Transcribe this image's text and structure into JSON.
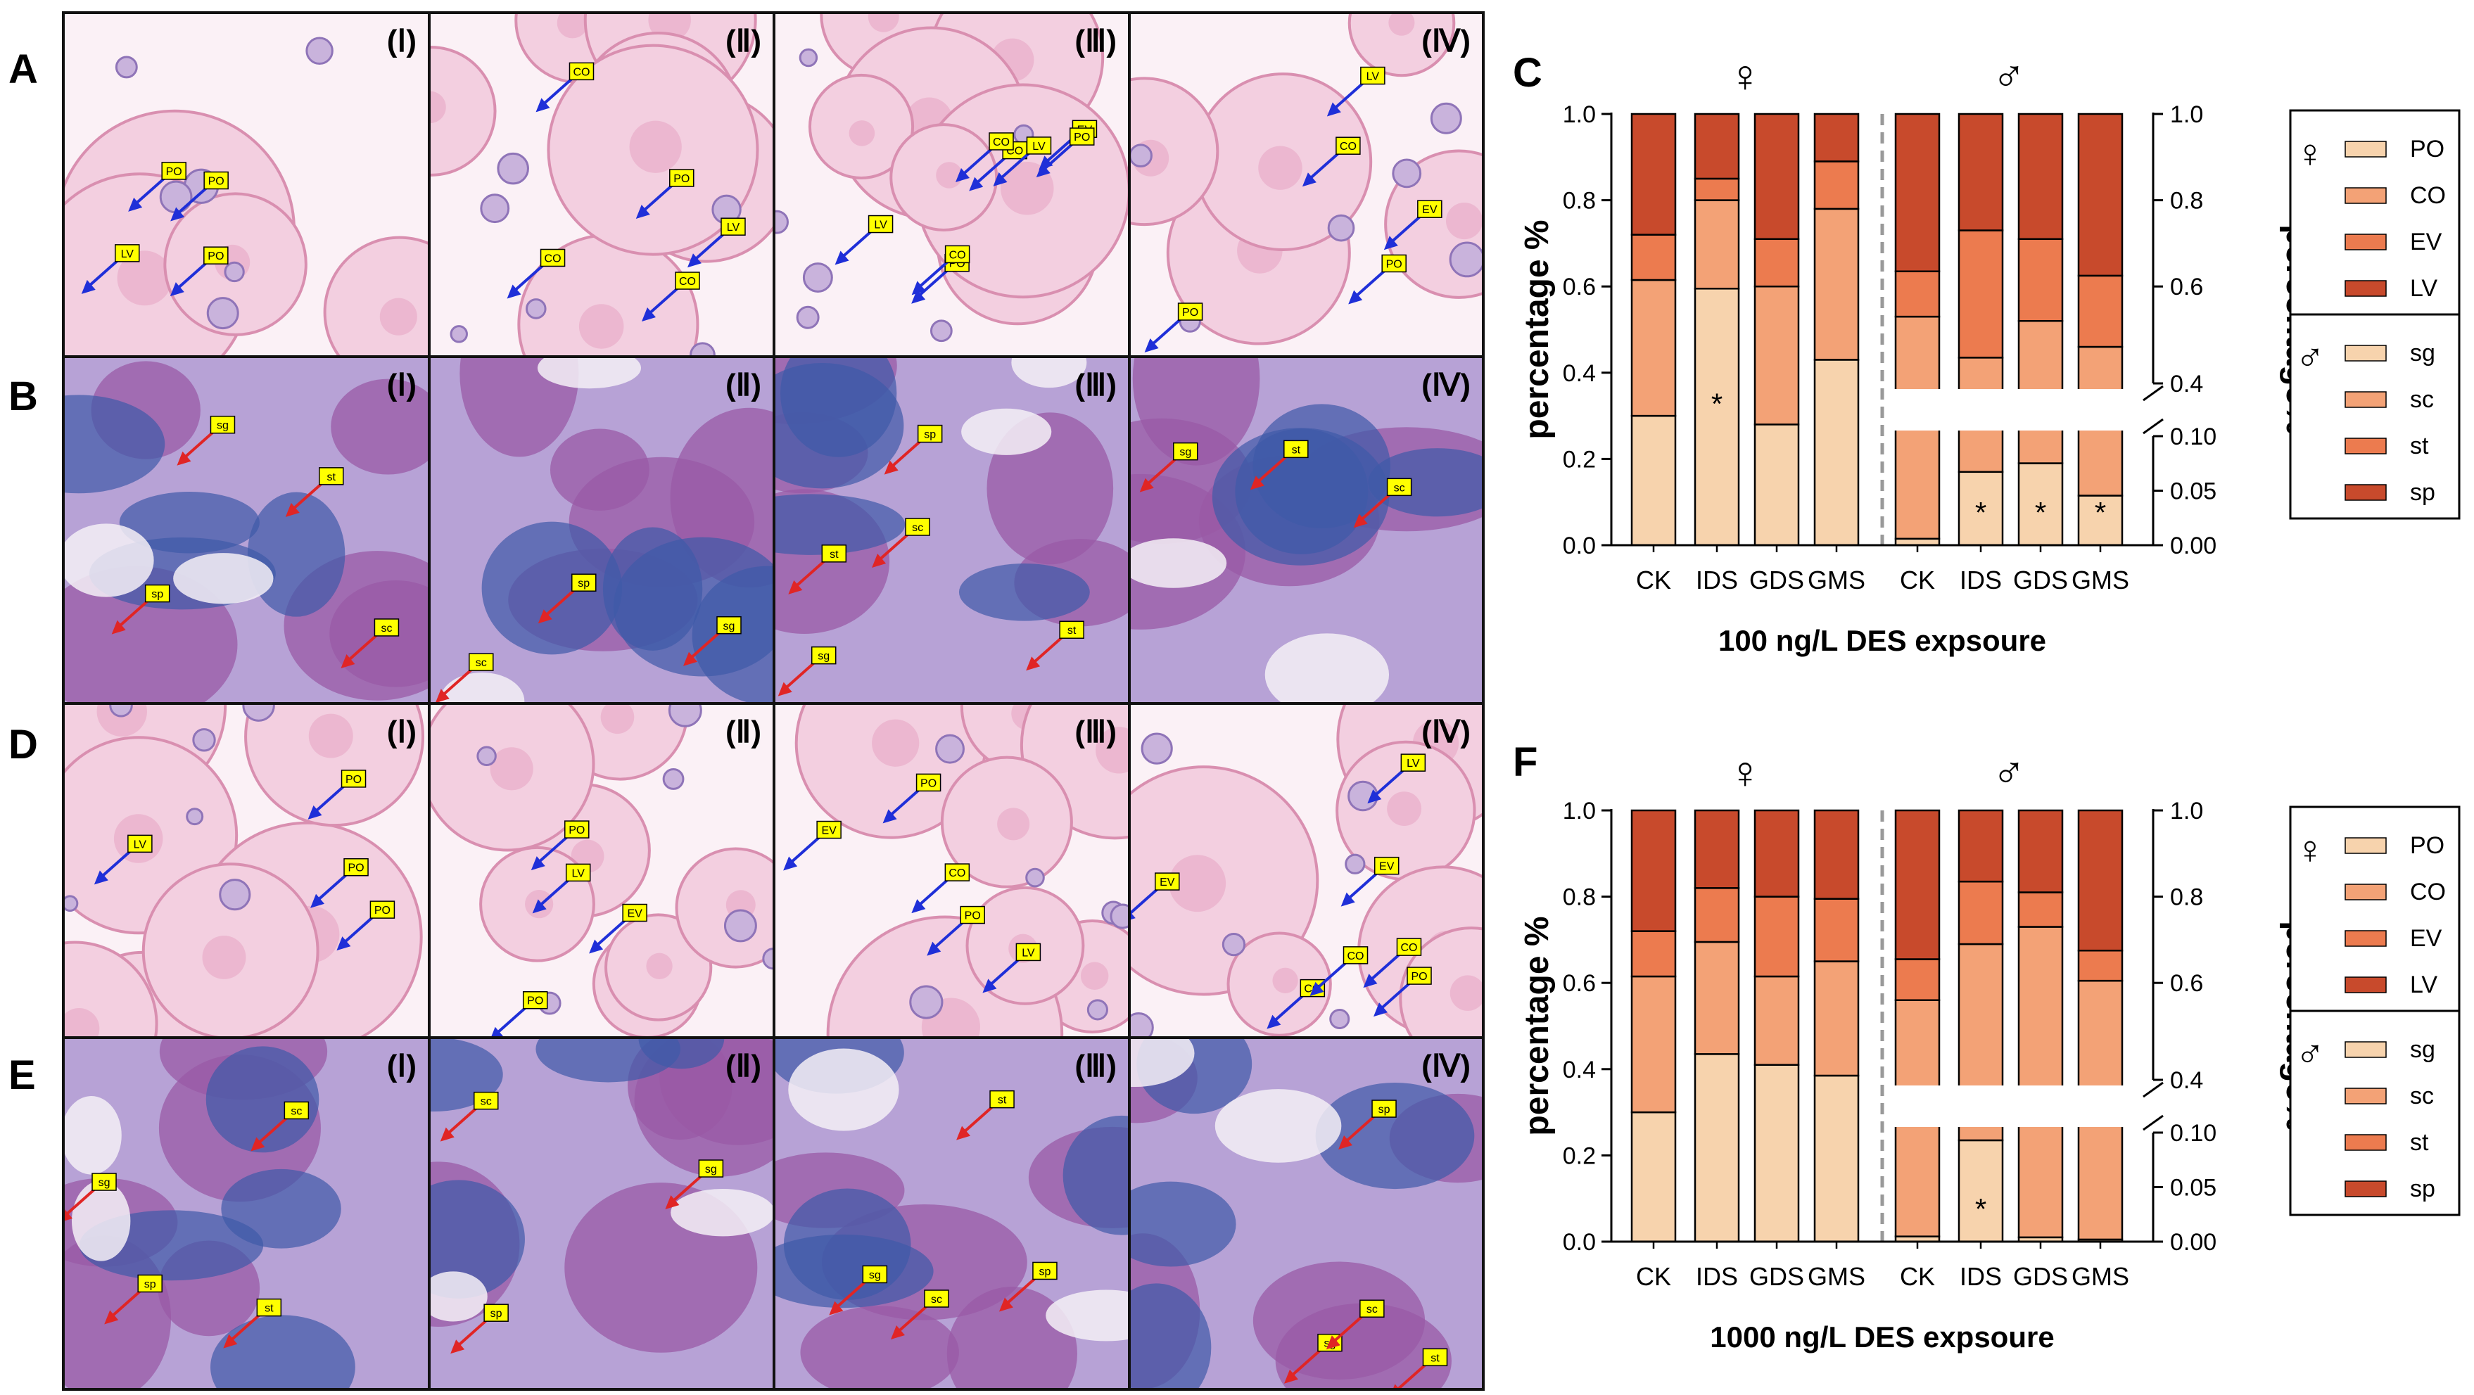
{
  "panel_letters": {
    "A": "A",
    "B": "B",
    "C": "C",
    "D": "D",
    "E": "E",
    "F": "F"
  },
  "roman_labels": [
    "(Ⅰ)",
    "(Ⅱ)",
    "(Ⅲ)",
    "(Ⅳ)"
  ],
  "colors": {
    "c1": "#f7d3ad",
    "c2": "#f3a276",
    "c3": "#ec7b4f",
    "c4": "#c84a2c",
    "ovary_bg": "#f4dbe6",
    "ovary_oocyte": "#f3cfe0",
    "ovary_edge": "#d98fb0",
    "testis_bg": "#b7a2d6",
    "testis_dark": "#3f5aa8",
    "testis_purple": "#9a5aa6",
    "label_box": "#ffff00",
    "arrow_blue": "#1f2fd8",
    "arrow_red": "#e02525"
  },
  "micrographs": {
    "A": [
      {
        "roman": "(Ⅰ)",
        "tags": [
          "LV",
          "PO",
          "PO",
          "PO"
        ]
      },
      {
        "roman": "(Ⅱ)",
        "tags": [
          "PO",
          "CO",
          "CO",
          "CO",
          "LV"
        ]
      },
      {
        "roman": "(Ⅲ)",
        "tags": [
          "EV",
          "LV",
          "PO",
          "CO",
          "LV",
          "PO",
          "CO",
          "CO"
        ]
      },
      {
        "roman": "(Ⅳ)",
        "tags": [
          "PO",
          "LV",
          "CO",
          "PO",
          "EV"
        ]
      }
    ],
    "B": [
      {
        "roman": "(Ⅰ)",
        "tags": [
          "sg",
          "sc",
          "st",
          "sp"
        ]
      },
      {
        "roman": "(Ⅱ)",
        "tags": [
          "sc",
          "sp",
          "sg"
        ]
      },
      {
        "roman": "(Ⅲ)",
        "tags": [
          "sc",
          "sp",
          "sg",
          "st",
          "st"
        ]
      },
      {
        "roman": "(Ⅳ)",
        "tags": [
          "st",
          "sc",
          "sg"
        ]
      }
    ],
    "D": [
      {
        "roman": "(Ⅰ)",
        "tags": [
          "LV",
          "PO",
          "PO",
          "PO"
        ]
      },
      {
        "roman": "(Ⅱ)",
        "tags": [
          "EV",
          "LV",
          "PO",
          "PO"
        ]
      },
      {
        "roman": "(Ⅲ)",
        "tags": [
          "LV",
          "EV",
          "PO",
          "PO",
          "CO"
        ]
      },
      {
        "roman": "(Ⅳ)",
        "tags": [
          "EV",
          "PO",
          "CO",
          "CO",
          "CO",
          "LV",
          "EV"
        ]
      }
    ],
    "E": [
      {
        "roman": "(Ⅰ)",
        "tags": [
          "sg",
          "sc",
          "st",
          "sp"
        ]
      },
      {
        "roman": "(Ⅱ)",
        "tags": [
          "sp",
          "sg",
          "sc"
        ]
      },
      {
        "roman": "(Ⅲ)",
        "tags": [
          "sp",
          "sg",
          "sc",
          "st"
        ]
      },
      {
        "roman": "(Ⅳ)",
        "tags": [
          "st",
          "sg",
          "sc",
          "sp"
        ]
      }
    ]
  },
  "chart_data": [
    {
      "panel": "C",
      "type": "bar",
      "stacked": true,
      "categories": [
        "CK",
        "IDS",
        "GDS",
        "GMS",
        "CK",
        "IDS",
        "GDS",
        "GMS"
      ],
      "female_symbol": "♀",
      "male_symbol": "♂",
      "xlabel": "100 ng/L DES expsoure",
      "ylabel_left": "percentage %",
      "ylabel_right": "percentage%",
      "left_ticks": [
        "0.0",
        "0.2",
        "0.4",
        "0.6",
        "0.8",
        "1.0"
      ],
      "right_ticks_upper": [
        "0.4",
        "0.6",
        "0.8",
        "1.0"
      ],
      "right_ticks_lower": [
        "0.00",
        "0.05",
        "0.10"
      ],
      "ylim": [
        0,
        1
      ],
      "female_bounds": [
        [
          0.3,
          0.615,
          0.72,
          1.0
        ],
        [
          0.595,
          0.8,
          0.85,
          1.0
        ],
        [
          0.28,
          0.6,
          0.71,
          1.0
        ],
        [
          0.43,
          0.78,
          0.89,
          1.0
        ]
      ],
      "male_bounds": [
        [
          0.015,
          0.53,
          0.635,
          1.0
        ],
        [
          0.17,
          0.435,
          0.73,
          1.0
        ],
        [
          0.19,
          0.52,
          0.71,
          1.0
        ],
        [
          0.115,
          0.46,
          0.625,
          1.0
        ]
      ],
      "significance": [
        "",
        "*",
        "",
        "",
        "",
        "*",
        "*",
        "*"
      ],
      "legend_female": [
        "PO",
        "CO",
        "EV",
        "LV"
      ],
      "legend_male": [
        "sg",
        "sc",
        "st",
        "sp"
      ],
      "legend_position": "right"
    },
    {
      "panel": "F",
      "type": "bar",
      "stacked": true,
      "categories": [
        "CK",
        "IDS",
        "GDS",
        "GMS",
        "CK",
        "IDS",
        "GDS",
        "GMS"
      ],
      "female_symbol": "♀",
      "male_symbol": "♂",
      "xlabel": "1000 ng/L DES expsoure",
      "ylabel_left": "percentage %",
      "ylabel_right": "percentage%",
      "left_ticks": [
        "0.0",
        "0.2",
        "0.4",
        "0.6",
        "0.8",
        "1.0"
      ],
      "right_ticks_upper": [
        "0.4",
        "0.6",
        "0.8",
        "1.0"
      ],
      "right_ticks_lower": [
        "0.00",
        "0.05",
        "0.10"
      ],
      "ylim": [
        0,
        1
      ],
      "female_bounds": [
        [
          0.3,
          0.615,
          0.72,
          1.0
        ],
        [
          0.435,
          0.695,
          0.82,
          1.0
        ],
        [
          0.41,
          0.615,
          0.8,
          1.0
        ],
        [
          0.385,
          0.65,
          0.795,
          1.0
        ]
      ],
      "male_bounds": [
        [
          0.012,
          0.56,
          0.655,
          1.0
        ],
        [
          0.235,
          0.69,
          0.835,
          1.0
        ],
        [
          0.01,
          0.73,
          0.81,
          1.0
        ],
        [
          0.005,
          0.605,
          0.675,
          1.0
        ]
      ],
      "significance": [
        "",
        "",
        "",
        "",
        "",
        "*",
        "",
        ""
      ],
      "legend_female": [
        "PO",
        "CO",
        "EV",
        "LV"
      ],
      "legend_male": [
        "sg",
        "sc",
        "st",
        "sp"
      ],
      "legend_position": "right"
    }
  ]
}
